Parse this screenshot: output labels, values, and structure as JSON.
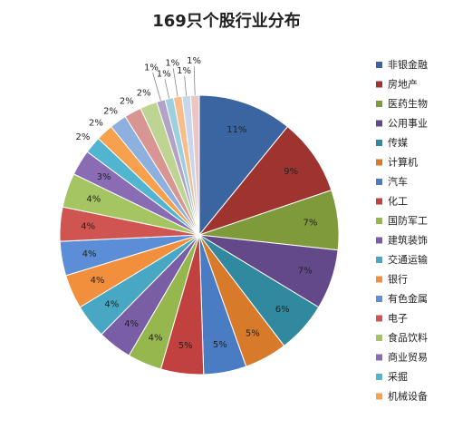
{
  "chart_data": {
    "type": "pie",
    "title": "169只个股行业分布",
    "categories": [
      "非银金融",
      "房地产",
      "医药生物",
      "公用事业",
      "传媒",
      "计算机",
      "汽车",
      "化工",
      "国防军工",
      "建筑装饰",
      "交通运输",
      "银行",
      "有色金属",
      "电子",
      "食品饮料",
      "商业贸易",
      "采掘",
      "机械设备",
      null,
      null,
      null,
      null,
      null,
      null,
      null,
      null
    ],
    "values": [
      11,
      9,
      7,
      7,
      6,
      5,
      5,
      5,
      4,
      4,
      4,
      4,
      4,
      4,
      4,
      3,
      2,
      2,
      2,
      2,
      2,
      1,
      1,
      1,
      1,
      1
    ],
    "value_labels": [
      "11%",
      "9%",
      "7%",
      "7%",
      "6%",
      "5%",
      "5%",
      "5%",
      "4%",
      "4%",
      "4%",
      "4%",
      "4%",
      "4%",
      "4%",
      "3%",
      "2%",
      "2%",
      "2%",
      "2%",
      "2%",
      "1%",
      "1%",
      "1%",
      "1%",
      "1%"
    ],
    "colors": [
      "#3b65a0",
      "#9e3330",
      "#7f9a3a",
      "#64498a",
      "#31899f",
      "#d77a29",
      "#4a7cc4",
      "#c1413e",
      "#96b64e",
      "#7a5ea5",
      "#48a7c2",
      "#f28f3c",
      "#5b8ed6",
      "#d05550",
      "#a5c462",
      "#8a6cb5",
      "#52b5d0",
      "#f7a04e",
      "#8eb0de",
      "#d99591",
      "#bdd493",
      "#b3a2c8",
      "#9dd0de",
      "#f9bd8c",
      "#c6d6ec",
      "#ebc6c4"
    ],
    "legend": "right"
  }
}
